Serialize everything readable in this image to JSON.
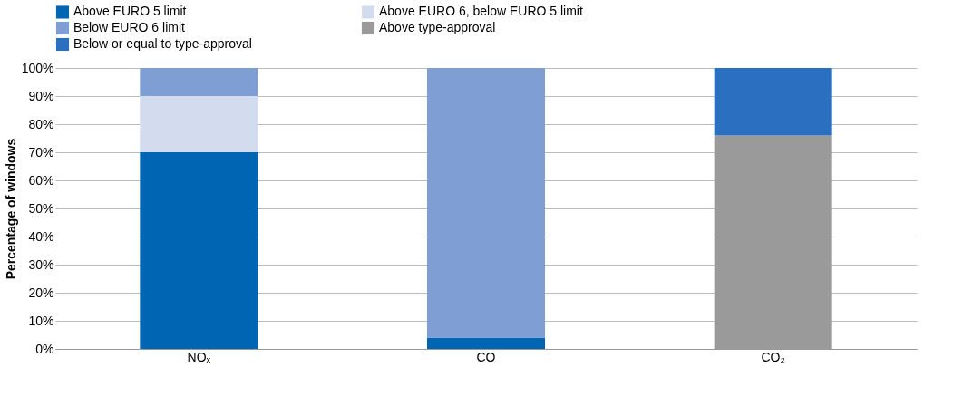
{
  "chart_data": {
    "type": "bar",
    "stacked": true,
    "ylabel": "Percentage of windows",
    "categories": [
      "NOₓ",
      "CO",
      "CO₂"
    ],
    "series": [
      {
        "name": "Above EURO 5 limit",
        "color": "#0066b3",
        "values": [
          70,
          4,
          null
        ]
      },
      {
        "name": "Above EURO 6, below EURO 5 limit",
        "color": "#d3dcef",
        "values": [
          20,
          null,
          null
        ]
      },
      {
        "name": "Below EURO 6 limit",
        "color": "#7f9fd4",
        "values": [
          10,
          96,
          null
        ]
      },
      {
        "name": "Above type-approval",
        "color": "#9a9a9a",
        "values": [
          null,
          null,
          76
        ]
      },
      {
        "name": "Below or equal to type-approval",
        "color": "#2a6fc0",
        "values": [
          null,
          null,
          24
        ]
      }
    ],
    "ylim": [
      0,
      100
    ],
    "yticks": [
      {
        "value": 0,
        "label": "0%"
      },
      {
        "value": 10,
        "label": "10%"
      },
      {
        "value": 20,
        "label": "20%"
      },
      {
        "value": 30,
        "label": "30%"
      },
      {
        "value": 40,
        "label": "40%"
      },
      {
        "value": 50,
        "label": "50%"
      },
      {
        "value": 60,
        "label": "60%"
      },
      {
        "value": 70,
        "label": "70%"
      },
      {
        "value": 80,
        "label": "80%"
      },
      {
        "value": 90,
        "label": "90%"
      },
      {
        "value": 100,
        "label": "100%"
      }
    ],
    "grid": "y",
    "legend": "top"
  }
}
